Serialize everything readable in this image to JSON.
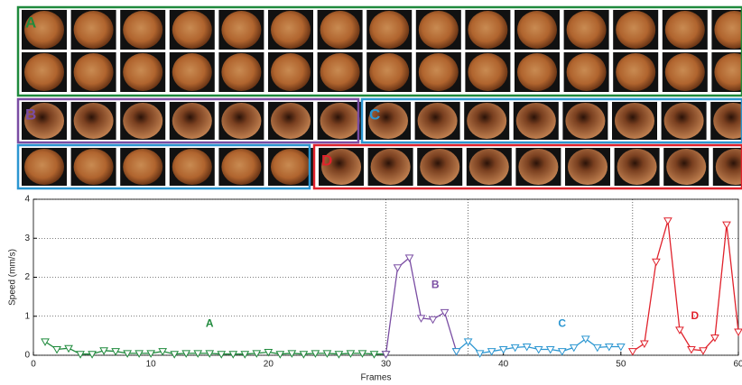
{
  "thumbnail_panels": [
    "A",
    "B",
    "C",
    "D"
  ],
  "chart_data": {
    "type": "line",
    "xlabel": "Frames",
    "ylabel": "Speed (mm/s)",
    "xlim": [
      0,
      60
    ],
    "ylim": [
      0,
      4
    ],
    "xticks": [
      0,
      10,
      20,
      30,
      40,
      50,
      60
    ],
    "yticks": [
      0,
      1,
      2,
      3,
      4
    ],
    "grid": true,
    "boundaries": [
      30,
      37,
      51
    ],
    "annotations": [
      "A",
      "B",
      "C",
      "D"
    ],
    "series": [
      {
        "name": "A",
        "color": "#1f8a3c",
        "x": [
          1,
          2,
          3,
          4,
          5,
          6,
          7,
          8,
          9,
          10,
          11,
          12,
          13,
          14,
          15,
          16,
          17,
          18,
          19,
          20,
          21,
          22,
          23,
          24,
          25,
          26,
          27,
          28,
          29,
          30
        ],
        "values": [
          0.35,
          0.15,
          0.18,
          0.03,
          0.03,
          0.12,
          0.1,
          0.05,
          0.05,
          0.05,
          0.1,
          0.03,
          0.05,
          0.05,
          0.05,
          0.03,
          0.03,
          0.03,
          0.05,
          0.08,
          0.03,
          0.05,
          0.03,
          0.05,
          0.05,
          0.03,
          0.05,
          0.05,
          0.03,
          0.03
        ]
      },
      {
        "name": "B",
        "color": "#7a4da3",
        "x": [
          30,
          31,
          32,
          33,
          34,
          35,
          36
        ],
        "values": [
          0.03,
          2.25,
          2.5,
          0.95,
          0.92,
          1.1,
          0.1
        ]
      },
      {
        "name": "C",
        "color": "#2b96d1",
        "x": [
          36,
          37,
          38,
          39,
          40,
          41,
          42,
          43,
          44,
          45,
          46,
          47,
          48,
          49,
          50
        ],
        "values": [
          0.1,
          0.35,
          0.05,
          0.1,
          0.15,
          0.2,
          0.22,
          0.15,
          0.15,
          0.1,
          0.2,
          0.42,
          0.2,
          0.22,
          0.22
        ]
      },
      {
        "name": "D",
        "color": "#e0222c",
        "x": [
          51,
          52,
          53,
          54,
          55,
          56,
          57,
          58,
          59,
          60
        ],
        "values": [
          0.1,
          0.3,
          2.4,
          3.45,
          0.65,
          0.15,
          0.12,
          0.45,
          3.35,
          0.6
        ]
      }
    ]
  }
}
